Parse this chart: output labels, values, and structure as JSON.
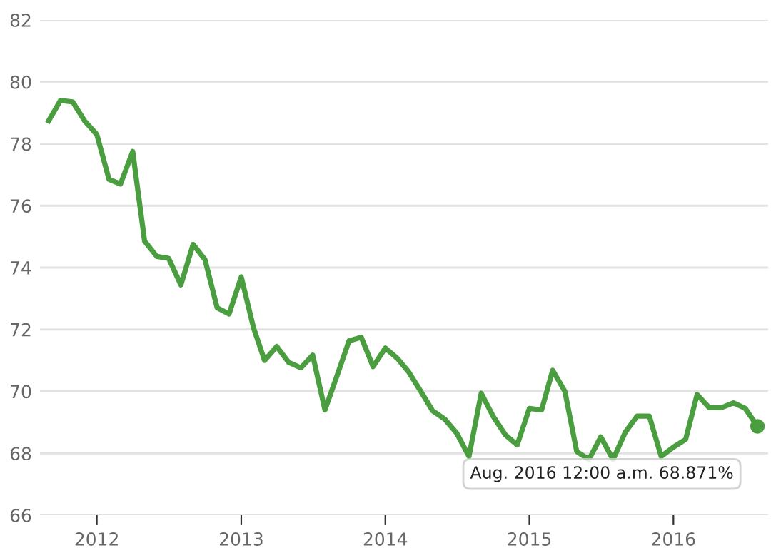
{
  "chart_data": {
    "type": "line",
    "x": [
      "2011-09",
      "2011-10",
      "2011-11",
      "2011-12",
      "2012-01",
      "2012-02",
      "2012-03",
      "2012-04",
      "2012-05",
      "2012-06",
      "2012-07",
      "2012-08",
      "2012-09",
      "2012-10",
      "2012-11",
      "2012-12",
      "2013-01",
      "2013-02",
      "2013-03",
      "2013-04",
      "2013-05",
      "2013-06",
      "2013-07",
      "2013-08",
      "2013-09",
      "2013-10",
      "2013-11",
      "2013-12",
      "2014-01",
      "2014-02",
      "2014-03",
      "2014-04",
      "2014-05",
      "2014-06",
      "2014-07",
      "2014-08",
      "2014-09",
      "2014-10",
      "2014-11",
      "2014-12",
      "2015-01",
      "2015-02",
      "2015-03",
      "2015-04",
      "2015-05",
      "2015-06",
      "2015-07",
      "2015-08",
      "2015-09",
      "2015-10",
      "2015-11",
      "2015-12",
      "2016-01",
      "2016-02",
      "2016-03",
      "2016-04",
      "2016-05",
      "2016-06",
      "2016-07",
      "2016-08"
    ],
    "series": [
      {
        "color": "#4a9e3f",
        "values": [
          78.74,
          79.4,
          79.35,
          78.74,
          78.3,
          76.85,
          76.7,
          77.75,
          74.86,
          74.36,
          74.3,
          73.44,
          74.75,
          74.26,
          72.7,
          72.5,
          73.7,
          72.06,
          71.0,
          71.45,
          70.94,
          70.76,
          71.17,
          69.4,
          70.52,
          71.63,
          71.75,
          70.8,
          71.4,
          71.06,
          70.63,
          70.0,
          69.37,
          69.1,
          68.65,
          67.9,
          69.94,
          69.2,
          68.6,
          68.27,
          69.45,
          69.4,
          70.68,
          70.0,
          68.06,
          67.8,
          68.53,
          67.8,
          68.68,
          69.2,
          69.2,
          67.9,
          68.2,
          68.45,
          69.9,
          69.47,
          69.47,
          69.63,
          69.45,
          68.871
        ]
      }
    ],
    "xlim": [
      "2011-08-10",
      "2016-08-28"
    ],
    "xticks": [
      {
        "value": "2012",
        "label": "2012"
      },
      {
        "value": "2013",
        "label": "2013"
      },
      {
        "value": "2014",
        "label": "2014"
      },
      {
        "value": "2015",
        "label": "2015"
      },
      {
        "value": "2016",
        "label": "2016"
      }
    ],
    "ylim": [
      66,
      82
    ],
    "yticks": [
      66,
      68,
      70,
      72,
      74,
      76,
      78,
      80,
      82
    ],
    "grid": "y",
    "marker": "none",
    "line_style": "solid",
    "annotations": [
      {
        "text": "Aug. 2016 12:00 a.m. 68.871%",
        "x": "2016-08",
        "y": 68.871
      }
    ]
  }
}
